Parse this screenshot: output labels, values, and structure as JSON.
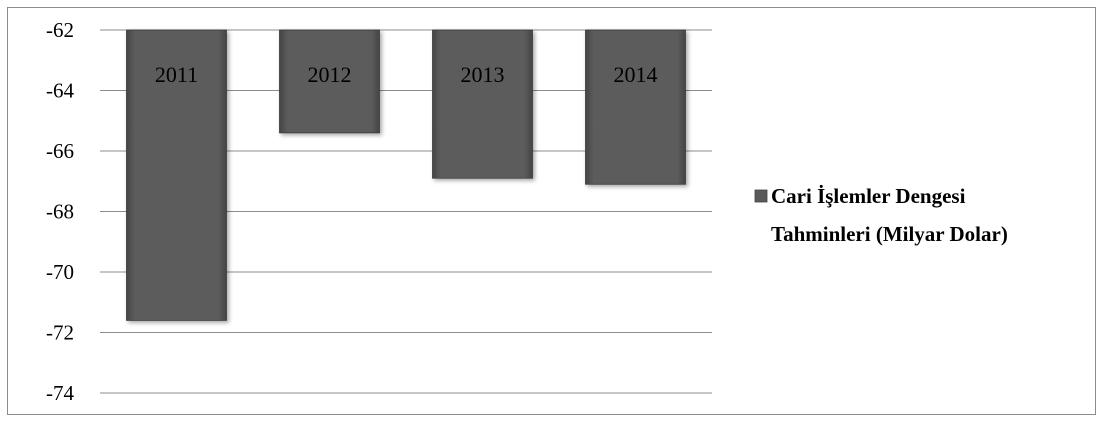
{
  "chart_data": {
    "type": "bar",
    "categories": [
      "2011",
      "2012",
      "2013",
      "2014"
    ],
    "values": [
      -71.6,
      -65.4,
      -66.9,
      -67.1
    ],
    "series": [
      {
        "name": "Cari İşlemler Dengesi Tahminleri (Milyar Dolar)",
        "values": [
          -71.6,
          -65.4,
          -66.9,
          -67.1
        ]
      }
    ],
    "ylim": [
      -74,
      -62
    ],
    "yticks": [
      "-62",
      "-64",
      "-66",
      "-68",
      "-70",
      "-72",
      "-74"
    ],
    "bar_labels": [
      "2011",
      "2012",
      "2013",
      "2014"
    ],
    "legend": {
      "position": "right",
      "lines": [
        "Cari İşlemler Dengesi",
        "Tahminleri (Milyar Dolar)"
      ]
    },
    "grid": true,
    "bar_color": "#5a5a5a",
    "title": "",
    "xlabel": "",
    "ylabel": ""
  }
}
